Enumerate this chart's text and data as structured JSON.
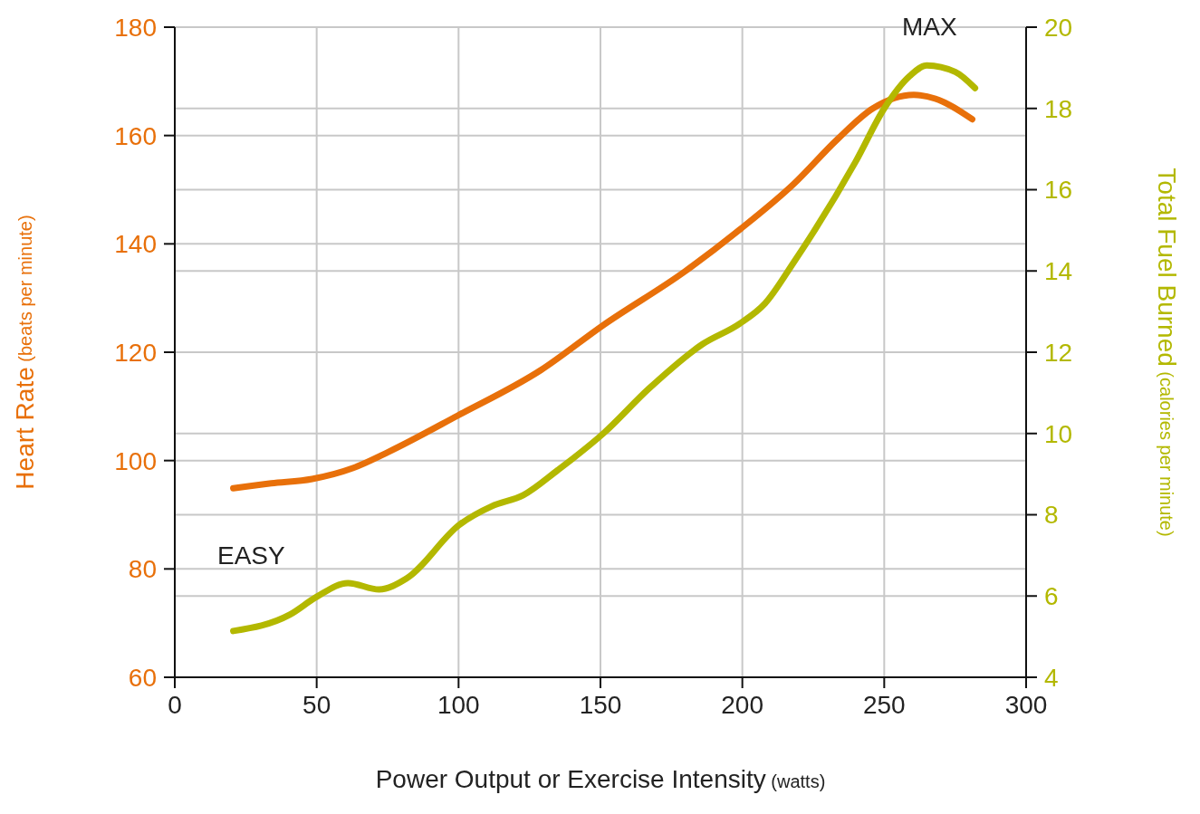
{
  "chart_data": {
    "type": "line",
    "xlabel": "Power Output or Exercise Intensity (watts)",
    "ylabel": "Heart Rate (beats per minute)",
    "y2label": "Total Fuel Burned (calories per minute)",
    "xlim": [
      0,
      300
    ],
    "xticks": [
      0,
      50,
      100,
      150,
      200,
      250,
      300
    ],
    "ylim": [
      60,
      180
    ],
    "yticks": [
      60,
      80,
      100,
      120,
      140,
      160,
      180
    ],
    "y2lim": [
      4,
      20
    ],
    "y2ticks": [
      4,
      6,
      8,
      10,
      12,
      14,
      16,
      18,
      20
    ],
    "grid": true,
    "series": [
      {
        "color": "#e8700a",
        "x": [
          20.6,
          34,
          48.4,
          62.7,
          75.3,
          99.7,
          129,
          151,
          180,
          199,
          218,
          233.5,
          246,
          260.4,
          268,
          281
        ],
        "values": [
          94.9,
          95.8,
          96.6,
          98.6,
          101.6,
          108.3,
          116.7,
          125,
          135,
          142.6,
          151,
          159.3,
          165,
          167.5,
          166.8,
          163
        ]
      },
      {
        "color": "#b3b800",
        "axis": "y2",
        "x": [
          20.6,
          40.5,
          50,
          61,
          72,
          81.6,
          100.6,
          111.7,
          122.8,
          135,
          151,
          167,
          186,
          199,
          208,
          218,
          240,
          250,
          259,
          265,
          275,
          282
        ],
        "values": [
          5.14,
          5.54,
          5.98,
          6.32,
          6.16,
          6.43,
          7.77,
          8.21,
          8.48,
          9.1,
          10,
          11.1,
          12.2,
          12.7,
          13.2,
          14.2,
          16.7,
          18,
          18.8,
          19.06,
          18.9,
          18.5
        ]
      }
    ],
    "annotations": [
      "EASY",
      "MAX"
    ]
  }
}
